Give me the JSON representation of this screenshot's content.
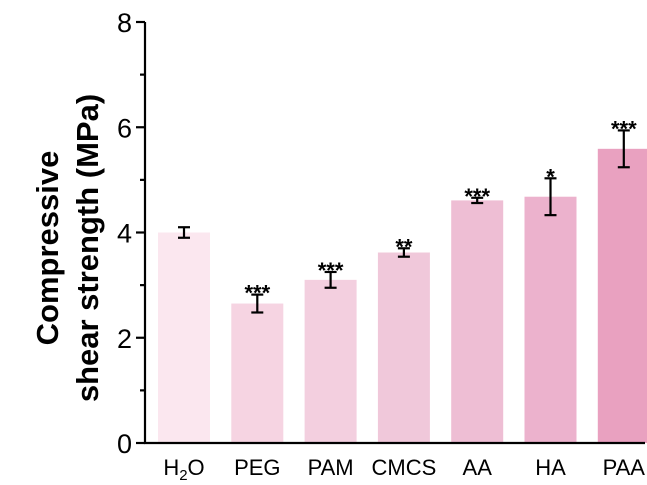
{
  "chart_data": {
    "type": "bar",
    "categories": [
      "H2O",
      "PEG",
      "PAM",
      "CMCS",
      "AA",
      "HA",
      "PAA"
    ],
    "values": [
      4.0,
      2.65,
      3.1,
      3.62,
      4.61,
      4.68,
      5.59
    ],
    "errors": [
      0.1,
      0.17,
      0.15,
      0.08,
      0.05,
      0.35,
      0.35
    ],
    "significance": [
      "",
      "***",
      "***",
      "**",
      "***",
      "*",
      "***"
    ],
    "bar_colors": [
      "#fbe7ef",
      "#f6d4e2",
      "#f3cfdf",
      "#f0c8da",
      "#eebed4",
      "#ecb2cd",
      "#e9a1c0"
    ],
    "ylabel_line1": "Compressive",
    "ylabel_line2": "shear strength (MPa)",
    "ylim": [
      0,
      8
    ],
    "yticks": [
      0,
      2,
      4,
      6,
      8
    ],
    "grid": false
  }
}
